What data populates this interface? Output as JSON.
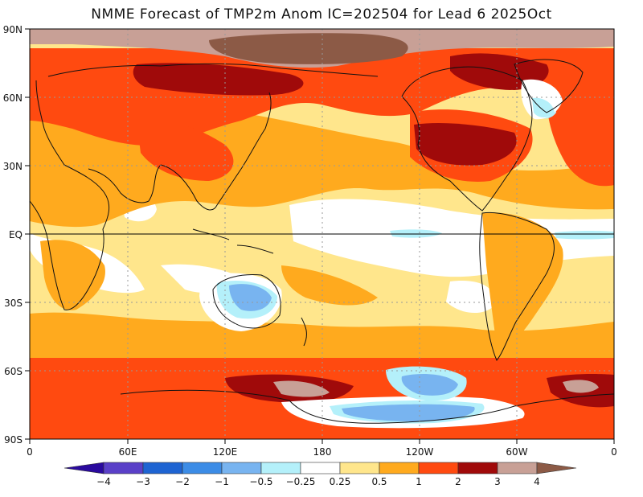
{
  "title": "NMME Forecast of TMP2m Anom IC=202504 for Lead 6 2025Oct",
  "lat_labels": [
    "90N",
    "60N",
    "30N",
    "EQ",
    "30S",
    "60S",
    "90S"
  ],
  "lon_labels": [
    "0",
    "60E",
    "120E",
    "180",
    "120W",
    "60W",
    "0"
  ],
  "colorbar": {
    "labels": [
      "−4",
      "−3",
      "−2",
      "−1",
      "−0.5",
      "−0.25",
      "0.25",
      "0.5",
      "1",
      "2",
      "3",
      "4"
    ],
    "colors": [
      "#2a0a9e",
      "#5a40c8",
      "#1e64d2",
      "#3c8ce6",
      "#78b4f0",
      "#b4f0fa",
      "#ffffff",
      "#ffe68c",
      "#ffaa1e",
      "#ff4a10",
      "#a00a0a",
      "#c8a096",
      "#8c5a46"
    ]
  },
  "anomaly_palette": {
    "ocean_base": "#ffe68c",
    "white": "#ffffff",
    "orange": "#ffaa1e",
    "red_orange": "#ff4a10",
    "dark_red": "#a00a0a",
    "light_brown": "#c8a096",
    "brown": "#8c5a46",
    "cyan": "#b4f0fa",
    "light_blue": "#78b4f0",
    "blue": "#3c8ce6"
  }
}
